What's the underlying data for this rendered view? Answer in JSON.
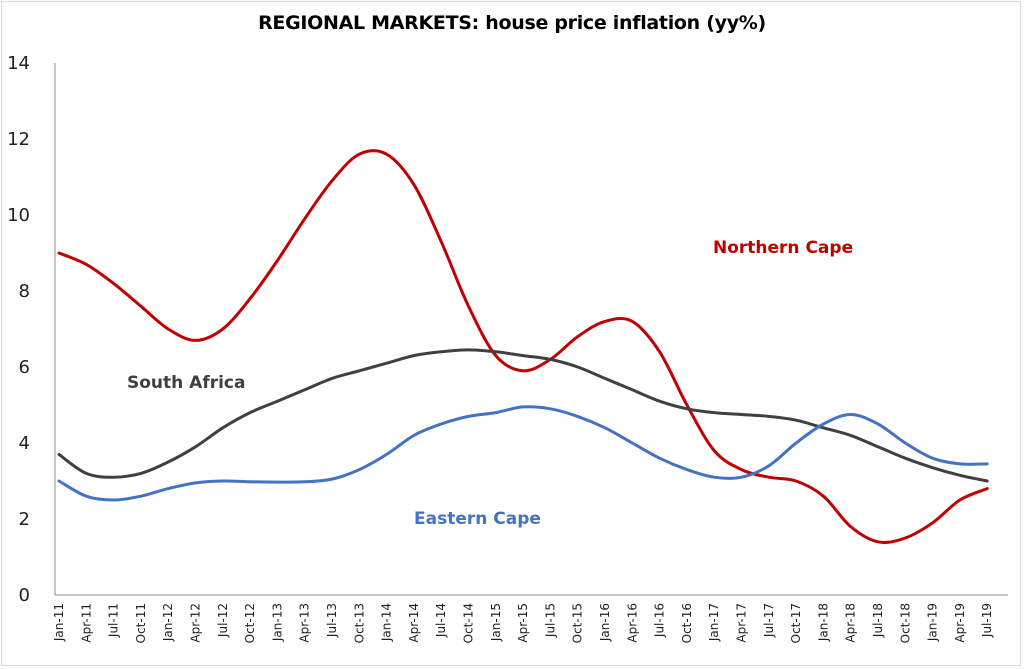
{
  "chart_data": {
    "type": "line",
    "title": "REGIONAL MARKETS: house price inflation (yy%)",
    "xlabel": "",
    "ylabel": "",
    "ylim": [
      0,
      14
    ],
    "yticks": [
      0,
      2,
      4,
      6,
      8,
      10,
      12,
      14
    ],
    "grid": false,
    "legend": "none (inline series labels)",
    "categories": [
      "Jan-11",
      "Apr-11",
      "Jul-11",
      "Oct-11",
      "Jan-12",
      "Apr-12",
      "Jul-12",
      "Oct-12",
      "Jan-13",
      "Apr-13",
      "Jul-13",
      "Oct-13",
      "Jan-14",
      "Apr-14",
      "Jul-14",
      "Oct-14",
      "Jan-15",
      "Apr-15",
      "Jul-15",
      "Oct-15",
      "Jan-16",
      "Apr-16",
      "Jul-16",
      "Oct-16",
      "Jan-17",
      "Apr-17",
      "Jul-17",
      "Oct-17",
      "Jan-18",
      "Apr-18",
      "Jul-18",
      "Oct-18",
      "Jan-19",
      "Apr-19",
      "Jul-19"
    ],
    "series": [
      {
        "name": "Northern Cape",
        "color": "#c00000",
        "values": [
          9.0,
          8.7,
          8.2,
          7.6,
          7.0,
          6.7,
          7.0,
          7.8,
          8.8,
          9.9,
          10.9,
          11.6,
          11.6,
          10.8,
          9.3,
          7.6,
          6.3,
          5.9,
          6.2,
          6.8,
          7.2,
          7.2,
          6.4,
          5.0,
          3.8,
          3.3,
          3.1,
          3.0,
          2.6,
          1.8,
          1.4,
          1.5,
          1.9,
          2.5,
          2.8
        ],
        "label": "Northern Cape"
      },
      {
        "name": "South Africa",
        "color": "#404040",
        "values": [
          3.7,
          3.2,
          3.1,
          3.2,
          3.5,
          3.9,
          4.4,
          4.8,
          5.1,
          5.4,
          5.7,
          5.9,
          6.1,
          6.3,
          6.4,
          6.45,
          6.4,
          6.3,
          6.2,
          6.0,
          5.7,
          5.4,
          5.1,
          4.9,
          4.8,
          4.75,
          4.7,
          4.6,
          4.4,
          4.2,
          3.9,
          3.6,
          3.35,
          3.15,
          3.0
        ],
        "label": "South Africa"
      },
      {
        "name": "Eastern Cape",
        "color": "#4472c4",
        "values": [
          3.0,
          2.6,
          2.5,
          2.6,
          2.8,
          2.95,
          3.0,
          2.98,
          2.97,
          2.98,
          3.05,
          3.3,
          3.7,
          4.2,
          4.5,
          4.7,
          4.8,
          4.95,
          4.9,
          4.7,
          4.4,
          4.0,
          3.6,
          3.3,
          3.1,
          3.1,
          3.4,
          4.0,
          4.5,
          4.75,
          4.5,
          4.0,
          3.6,
          3.45,
          3.45
        ],
        "label": "Eastern Cape"
      }
    ]
  }
}
